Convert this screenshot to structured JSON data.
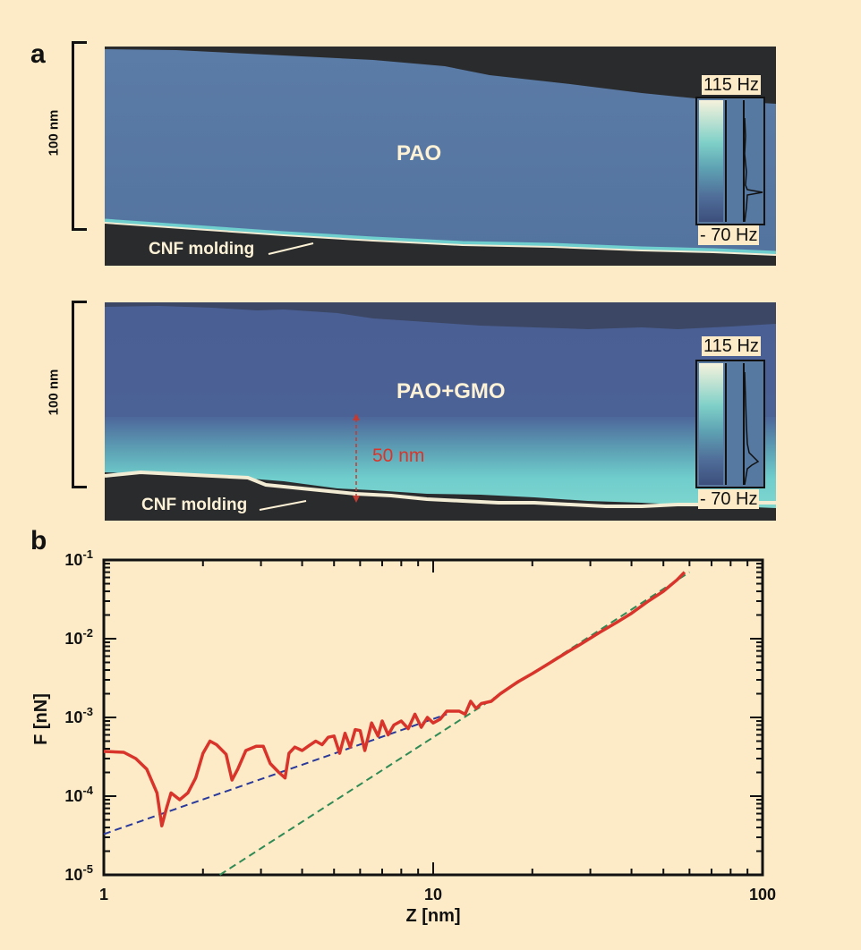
{
  "panel_a": {
    "letter": "a",
    "images": [
      {
        "scale_label": "100 nm",
        "material_label": "PAO",
        "molding_label": "CNF molding",
        "colorbar_max": "115 Hz",
        "colorbar_min": "- 70 Hz"
      },
      {
        "scale_label": "100 nm",
        "material_label": "PAO+GMO",
        "molding_label": "CNF molding",
        "colorbar_max": "115 Hz",
        "colorbar_min": "- 70 Hz",
        "thickness_label": "50 nm"
      }
    ],
    "colors": {
      "liquid": "#5a7aa3",
      "liquid_dark": "#4a5f92",
      "layer": "#6fcfcf",
      "edge": "#f3ecd4",
      "background": "#2a2b2d"
    }
  },
  "panel_b": {
    "letter": "b"
  },
  "chart_data": {
    "type": "line",
    "xlabel": "Z [nm]",
    "ylabel": "F [nN]",
    "x_scale": "log",
    "y_scale": "log",
    "xlim": [
      1,
      100
    ],
    "ylim": [
      1e-05,
      0.1
    ],
    "x_tick_labels": [
      "1",
      "10",
      "100"
    ],
    "y_tick_labels": [
      {
        "base": "10",
        "exp": "-5"
      },
      {
        "base": "10",
        "exp": "-4"
      },
      {
        "base": "10",
        "exp": "-3"
      },
      {
        "base": "10",
        "exp": "-2"
      },
      {
        "base": "10",
        "exp": "-1"
      }
    ],
    "grid": false,
    "series": [
      {
        "style": "solid",
        "color": "#d9342b",
        "x": [
          1.0,
          1.15,
          1.25,
          1.35,
          1.45,
          1.5,
          1.55,
          1.6,
          1.7,
          1.8,
          1.9,
          2.0,
          2.1,
          2.2,
          2.35,
          2.45,
          2.55,
          2.7,
          2.9,
          3.05,
          3.2,
          3.4,
          3.55,
          3.65,
          3.8,
          4.0,
          4.2,
          4.4,
          4.6,
          4.8,
          5.0,
          5.2,
          5.4,
          5.6,
          5.8,
          6.0,
          6.2,
          6.5,
          6.8,
          7.0,
          7.3,
          7.6,
          8.0,
          8.4,
          8.8,
          9.2,
          9.6,
          10.0,
          10.5,
          11.0,
          11.5,
          12.0,
          12.5,
          13.0,
          13.5,
          14.0,
          15.0,
          16.0,
          18.0,
          20.0,
          22.0,
          25.0,
          28.0,
          32.0,
          36.0,
          40.0,
          45.0,
          50.0,
          55.0,
          58.0
        ],
        "y": [
          0.00037,
          0.00036,
          0.0003,
          0.00022,
          0.00011,
          4.2e-05,
          7e-05,
          0.00011,
          9e-05,
          0.00011,
          0.00017,
          0.00035,
          0.0005,
          0.00045,
          0.00034,
          0.00016,
          0.00022,
          0.00038,
          0.00043,
          0.00043,
          0.00026,
          0.0002,
          0.00017,
          0.00035,
          0.00042,
          0.00038,
          0.00044,
          0.0005,
          0.00045,
          0.00056,
          0.00058,
          0.00035,
          0.00063,
          0.00042,
          0.0007,
          0.00068,
          0.00038,
          0.00085,
          0.00058,
          0.0009,
          0.0006,
          0.0008,
          0.0009,
          0.00072,
          0.0011,
          0.00075,
          0.001,
          0.00085,
          0.00095,
          0.0012,
          0.0012,
          0.0012,
          0.0011,
          0.0016,
          0.0013,
          0.0015,
          0.0016,
          0.002,
          0.0028,
          0.0036,
          0.0046,
          0.0064,
          0.0085,
          0.012,
          0.016,
          0.021,
          0.03,
          0.04,
          0.056,
          0.07
        ]
      },
      {
        "style": "dashed",
        "color": "#2a3a9c",
        "x": [
          1.0,
          11.0
        ],
        "y": [
          3.3e-05,
          0.0011
        ]
      },
      {
        "style": "dashed",
        "color": "#2f8a55",
        "x": [
          2.25,
          60.0
        ],
        "y": [
          1e-05,
          0.07
        ]
      }
    ]
  }
}
